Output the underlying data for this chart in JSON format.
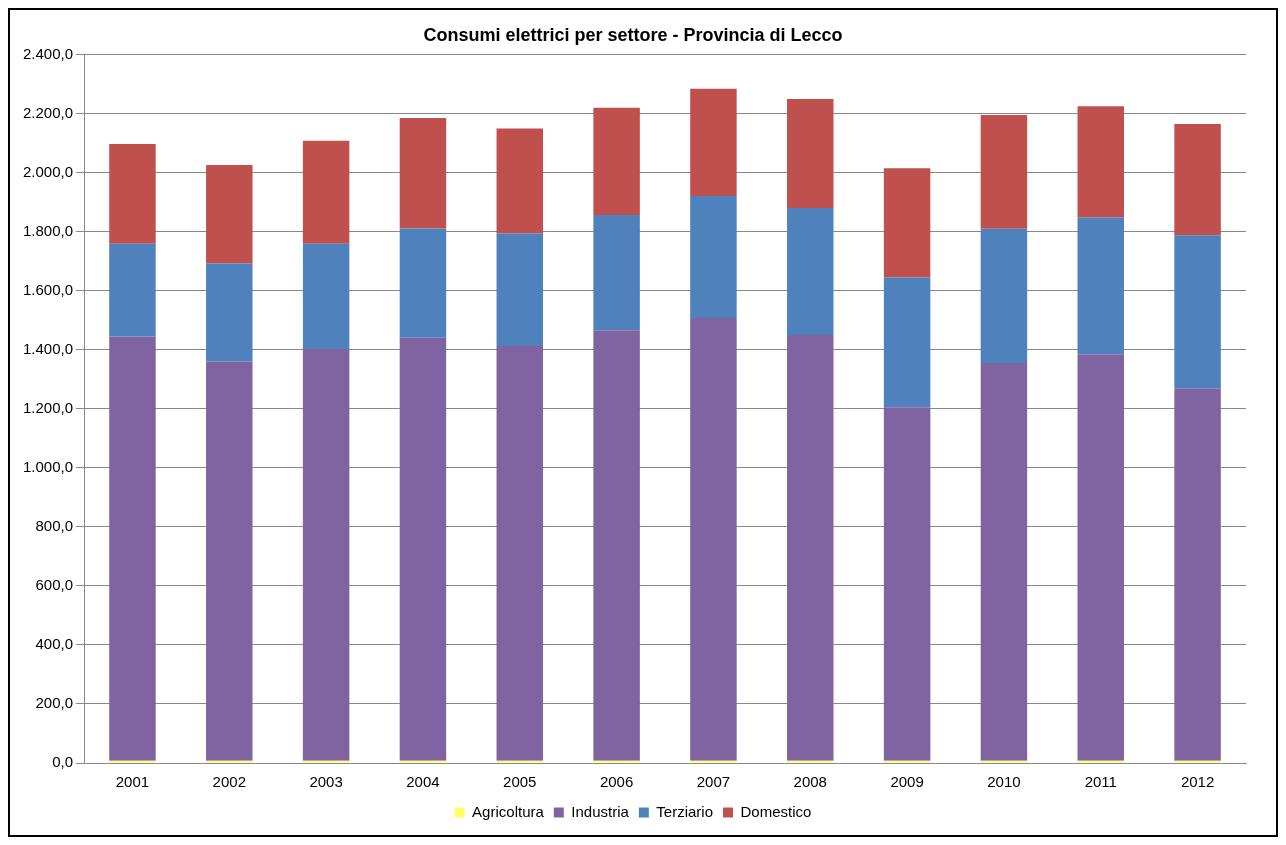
{
  "chart_data": {
    "type": "bar",
    "title": "Consumi elettrici per settore - Provincia di Lecco",
    "categories": [
      "2001",
      "2002",
      "2003",
      "2004",
      "2005",
      "2006",
      "2007",
      "2008",
      "2009",
      "2010",
      "2011",
      "2012"
    ],
    "stacked": true,
    "series": [
      {
        "name": "Agricoltura",
        "color": "#ffff66",
        "values": [
          8,
          8,
          8,
          8,
          8,
          8,
          8,
          8,
          8,
          8,
          8,
          8
        ]
      },
      {
        "name": "Industria",
        "color": "#8064a2",
        "values": [
          1437,
          1352,
          1395,
          1433,
          1405,
          1458,
          1500,
          1442,
          1197,
          1347,
          1377,
          1262
        ]
      },
      {
        "name": "Terziario",
        "color": "#4f81bd",
        "values": [
          314,
          332,
          356,
          370,
          381,
          391,
          413,
          430,
          440,
          455,
          463,
          518
        ]
      },
      {
        "name": "Domestico",
        "color": "#c0504d",
        "values": [
          338,
          334,
          349,
          374,
          356,
          363,
          363,
          370,
          370,
          385,
          377,
          377
        ]
      }
    ],
    "ylim": [
      0,
      2400
    ],
    "yticks": [
      {
        "value": 0,
        "label": "0,0"
      },
      {
        "value": 200,
        "label": "200,0"
      },
      {
        "value": 400,
        "label": "400,0"
      },
      {
        "value": 600,
        "label": "600,0"
      },
      {
        "value": 800,
        "label": "800,0"
      },
      {
        "value": 1000,
        "label": "1.000,0"
      },
      {
        "value": 1200,
        "label": "1.200,0"
      },
      {
        "value": 1400,
        "label": "1.400,0"
      },
      {
        "value": 1600,
        "label": "1.600,0"
      },
      {
        "value": 1800,
        "label": "1.800,0"
      },
      {
        "value": 2000,
        "label": "2.000,0"
      },
      {
        "value": 2200,
        "label": "2.200,0"
      },
      {
        "value": 2400,
        "label": "2.400,0"
      }
    ],
    "grid": "y",
    "legend": "bottom"
  }
}
